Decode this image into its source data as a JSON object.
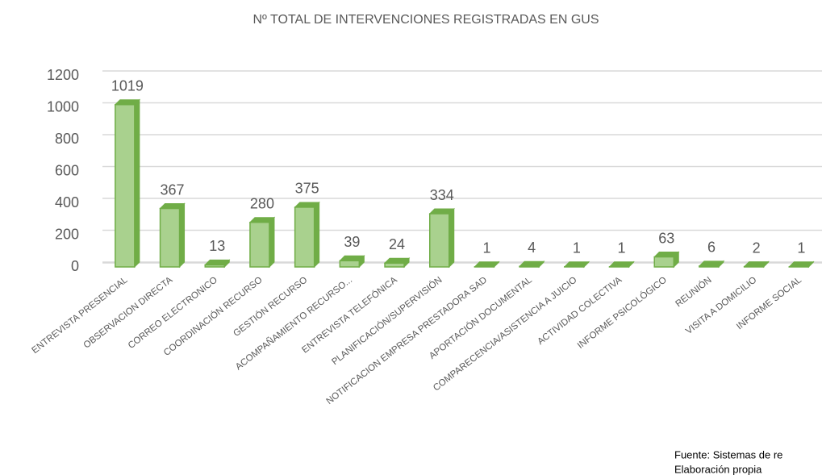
{
  "chart_data": {
    "type": "bar",
    "title": "Nº TOTAL DE INTERVENCIONES REGISTRADAS EN GUS",
    "categories": [
      "ENTREVISTA PRESENCIAL",
      "OBSERVACION DIRECTA",
      "CORREO ELECTRONICO",
      "COORDINACIÓN RECURSO",
      "GESTIÓN RECURSO",
      "ACOMPAÑAMIENTO RECURSO...",
      "ENTREVISTA TELEFÓNICA",
      "PLANIFICACIÓN/SUPERVISIÓN",
      "NOTIFICACION EMPRESA PRESTADORA SAD",
      "APORTACIÓN DOCUMENTAL",
      "COMPARECENCIA/ASISTENCIA A JUICIO",
      "ACTIVIDAD COLECTIVA",
      "INFORME PSICOLÓGICO",
      "REUNIÓN",
      "VISITA A DOMICILIO",
      "INFORME SOCIAL"
    ],
    "values": [
      1019,
      367,
      13,
      280,
      375,
      39,
      24,
      334,
      1,
      4,
      1,
      1,
      63,
      6,
      2,
      1
    ],
    "color": "#a9d18e",
    "edge_color": "#70ad47",
    "ylim": [
      0,
      1200
    ],
    "yticks": [
      0,
      200,
      400,
      600,
      800,
      1000,
      1200
    ],
    "grid": true,
    "source": [
      "Fuente: Sistemas de re",
      "Elaboración propia"
    ]
  }
}
